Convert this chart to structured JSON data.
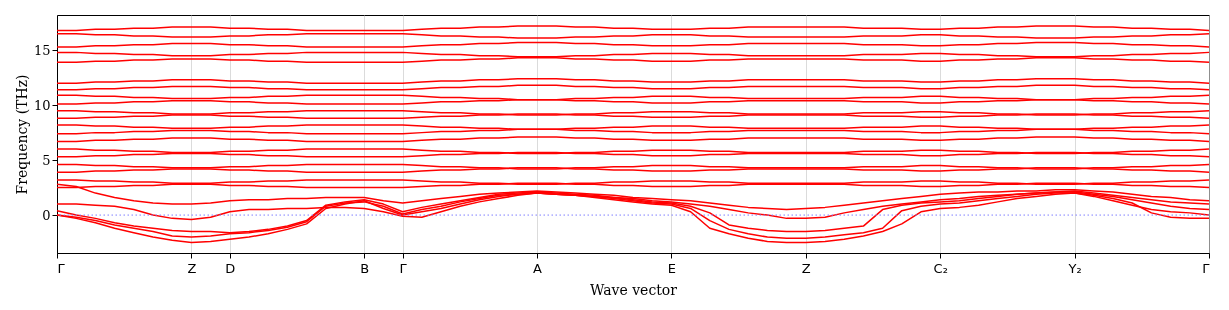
{
  "chart_data": {
    "type": "line",
    "xlabel": "Wave vector",
    "ylabel": "Frequency (THz)",
    "grid": "x",
    "line_style": "solid",
    "marker": "none",
    "categories": [
      "Γ",
      null,
      null,
      null,
      null,
      null,
      null,
      "Z",
      null,
      "D",
      null,
      null,
      null,
      null,
      null,
      null,
      "B",
      null,
      "Γ",
      null,
      null,
      null,
      null,
      null,
      null,
      "A",
      null,
      null,
      null,
      null,
      null,
      null,
      "E",
      null,
      null,
      null,
      null,
      null,
      null,
      "Z",
      null,
      null,
      null,
      null,
      null,
      null,
      "C₂",
      null,
      null,
      null,
      null,
      null,
      null,
      "Y₂",
      null,
      null,
      null,
      null,
      null,
      null,
      "Γ"
    ],
    "ylim": [
      -3.45,
      18.2
    ],
    "yticks": [
      0,
      5,
      10,
      15
    ],
    "ref_lines": [
      {
        "axis": "y",
        "value": 0,
        "color": "#7f7fff",
        "line_style": "dotted"
      }
    ],
    "series": [
      {
        "color": "#ff0000",
        "values": [
          0,
          -0.3,
          -0.7,
          -1.2,
          -1.6,
          -2.0,
          -2.3,
          -2.5,
          -2.4,
          -2.2,
          -2.0,
          -1.7,
          -1.3,
          -0.8,
          0.6,
          1.0,
          1.3,
          0.6,
          0,
          0.3,
          0.6,
          1.0,
          1.4,
          1.7,
          1.9,
          2.0,
          1.9,
          1.8,
          1.6,
          1.4,
          1.2,
          1.0,
          0.9,
          0.3,
          -1.2,
          -1.7,
          -2.1,
          -2.4,
          -2.5,
          -2.5,
          -2.4,
          -2.2,
          -1.9,
          -1.5,
          -0.8,
          0.3,
          0.6,
          0.7,
          0.9,
          1.2,
          1.5,
          1.7,
          1.9,
          2.0,
          1.7,
          1.3,
          0.9,
          0.5,
          0.3,
          0.2,
          0
        ]
      },
      {
        "color": "#ff0000",
        "values": [
          0,
          -0.2,
          -0.5,
          -0.9,
          -1.2,
          -1.5,
          -1.9,
          -2.0,
          -1.9,
          -1.7,
          -1.6,
          -1.4,
          -1.1,
          -0.6,
          0.8,
          1.1,
          1.2,
          0.8,
          0.1,
          0.5,
          0.8,
          1.2,
          1.5,
          1.8,
          1.9,
          2.0,
          1.9,
          1.8,
          1.7,
          1.5,
          1.3,
          1.1,
          1.0,
          0.6,
          -0.5,
          -1.3,
          -1.7,
          -2.0,
          -2.1,
          -2.1,
          -2.0,
          -1.8,
          -1.6,
          -1.2,
          0.4,
          0.8,
          1.0,
          1.1,
          1.3,
          1.5,
          1.7,
          1.9,
          2.0,
          2.0,
          1.8,
          1.5,
          1.1,
          0.2,
          -0.2,
          -0.3,
          -0.3
        ]
      },
      {
        "color": "#ff0000",
        "values": [
          0.4,
          0.0,
          -0.3,
          -0.7,
          -1.0,
          -1.2,
          -1.4,
          -1.5,
          -1.5,
          -1.6,
          -1.5,
          -1.3,
          -1.0,
          -0.5,
          0.9,
          1.2,
          1.4,
          1.0,
          0.3,
          0.7,
          1.0,
          1.3,
          1.6,
          1.9,
          2.0,
          2.1,
          2.0,
          1.9,
          1.8,
          1.6,
          1.4,
          1.2,
          1.1,
          0.8,
          0.2,
          -0.9,
          -1.2,
          -1.4,
          -1.5,
          -1.5,
          -1.4,
          -1.2,
          -1.0,
          0.5,
          0.9,
          1.1,
          1.2,
          1.3,
          1.5,
          1.7,
          1.9,
          2.0,
          2.1,
          2.1,
          1.9,
          1.7,
          1.4,
          1.1,
          0.8,
          0.6,
          0.5
        ]
      },
      {
        "color": "#ff0000",
        "values": [
          1.0,
          1.0,
          0.9,
          0.8,
          0.5,
          0.0,
          -0.3,
          -0.4,
          -0.2,
          0.3,
          0.5,
          0.5,
          0.6,
          0.6,
          0.7,
          0.7,
          0.6,
          0.3,
          -0.1,
          -0.2,
          0.3,
          0.8,
          1.2,
          1.5,
          1.8,
          2.0,
          1.9,
          1.8,
          1.7,
          1.6,
          1.5,
          1.3,
          1.2,
          1.0,
          0.8,
          0.5,
          0.2,
          0.0,
          -0.3,
          -0.3,
          -0.2,
          0.2,
          0.5,
          0.8,
          1.0,
          1.2,
          1.4,
          1.5,
          1.7,
          1.8,
          1.9,
          2.0,
          2.1,
          2.2,
          2.0,
          1.8,
          1.6,
          1.4,
          1.2,
          1.1,
          1.0
        ]
      },
      {
        "color": "#ff0000",
        "values": [
          2.8,
          2.6,
          2.0,
          1.6,
          1.3,
          1.1,
          1.0,
          1.0,
          1.1,
          1.3,
          1.4,
          1.4,
          1.5,
          1.5,
          1.6,
          1.6,
          1.6,
          1.3,
          1.1,
          1.3,
          1.5,
          1.7,
          1.9,
          2.0,
          2.1,
          2.2,
          2.1,
          2.0,
          1.9,
          1.8,
          1.6,
          1.5,
          1.4,
          1.3,
          1.1,
          0.9,
          0.7,
          0.6,
          0.5,
          0.6,
          0.7,
          0.9,
          1.1,
          1.3,
          1.5,
          1.7,
          1.9,
          2.0,
          2.1,
          2.1,
          2.2,
          2.2,
          2.3,
          2.3,
          2.2,
          2.1,
          1.9,
          1.7,
          1.6,
          1.4,
          1.3
        ]
      },
      {
        "color": "#ff0000",
        "values": [
          2.5,
          2.5,
          2.6,
          2.6,
          2.7,
          2.7,
          2.8,
          2.8,
          2.8,
          2.7,
          2.7,
          2.6,
          2.6,
          2.5,
          2.5,
          2.5,
          2.5,
          2.5,
          2.5,
          2.6,
          2.7,
          2.7,
          2.8,
          2.8,
          2.9,
          2.9,
          2.9,
          2.8,
          2.8,
          2.7,
          2.7,
          2.6,
          2.6,
          2.6,
          2.7,
          2.7,
          2.8,
          2.8,
          2.8,
          2.8,
          2.8,
          2.8,
          2.7,
          2.7,
          2.7,
          2.6,
          2.6,
          2.7,
          2.7,
          2.8,
          2.8,
          2.9,
          2.9,
          2.9,
          2.8,
          2.8,
          2.7,
          2.7,
          2.6,
          2.6,
          2.5
        ]
      },
      {
        "color": "#ff0000",
        "values": [
          3.2,
          3.2,
          3.1,
          3.1,
          3,
          3,
          2.9,
          2.9,
          2.9,
          3,
          3,
          3.1,
          3.1,
          3.2,
          3.2,
          3.2,
          3.2,
          3.2,
          3.2,
          3.1,
          3,
          3,
          2.9,
          2.9,
          2.8,
          2.8,
          2.8,
          2.9,
          2.9,
          3,
          3,
          3.1,
          3.1,
          3.1,
          3,
          3,
          2.9,
          2.9,
          2.9,
          2.9,
          2.9,
          2.9,
          3,
          3,
          3,
          3.1,
          3.1,
          3,
          3,
          2.9,
          2.9,
          2.8,
          2.8,
          2.8,
          2.9,
          2.9,
          3,
          3,
          3.1,
          3.1,
          3.2
        ]
      },
      {
        "color": "#ff0000",
        "values": [
          3.9,
          3.9,
          4,
          4,
          4.1,
          4.1,
          4.2,
          4.2,
          4.2,
          4.1,
          4.1,
          4,
          4,
          3.9,
          3.9,
          3.9,
          3.9,
          3.9,
          3.9,
          4,
          4.1,
          4.1,
          4.2,
          4.2,
          4.3,
          4.3,
          4.3,
          4.2,
          4.2,
          4.1,
          4.1,
          4,
          4,
          4,
          4.1,
          4.1,
          4.2,
          4.2,
          4.2,
          4.2,
          4.2,
          4.2,
          4.1,
          4.1,
          4.1,
          4,
          4,
          4.1,
          4.1,
          4.2,
          4.2,
          4.3,
          4.3,
          4.3,
          4.2,
          4.2,
          4.1,
          4.1,
          4,
          4,
          3.9
        ]
      },
      {
        "color": "#ff0000",
        "values": [
          4.6,
          4.6,
          4.5,
          4.5,
          4.4,
          4.4,
          4.3,
          4.3,
          4.3,
          4.4,
          4.4,
          4.5,
          4.5,
          4.6,
          4.6,
          4.6,
          4.6,
          4.6,
          4.6,
          4.5,
          4.4,
          4.4,
          4.3,
          4.3,
          4.2,
          4.2,
          4.2,
          4.3,
          4.3,
          4.4,
          4.4,
          4.5,
          4.5,
          4.5,
          4.4,
          4.4,
          4.3,
          4.3,
          4.3,
          4.3,
          4.3,
          4.3,
          4.4,
          4.4,
          4.4,
          4.5,
          4.5,
          4.4,
          4.4,
          4.3,
          4.3,
          4.2,
          4.2,
          4.2,
          4.3,
          4.3,
          4.4,
          4.4,
          4.5,
          4.5,
          4.6
        ]
      },
      {
        "color": "#ff0000",
        "values": [
          5.3,
          5.3,
          5.4,
          5.4,
          5.5,
          5.5,
          5.6,
          5.6,
          5.6,
          5.5,
          5.5,
          5.4,
          5.4,
          5.3,
          5.3,
          5.3,
          5.3,
          5.3,
          5.3,
          5.4,
          5.5,
          5.5,
          5.6,
          5.6,
          5.7,
          5.7,
          5.7,
          5.6,
          5.6,
          5.5,
          5.5,
          5.4,
          5.4,
          5.4,
          5.5,
          5.5,
          5.6,
          5.6,
          5.6,
          5.6,
          5.6,
          5.6,
          5.5,
          5.5,
          5.5,
          5.4,
          5.4,
          5.5,
          5.5,
          5.6,
          5.6,
          5.7,
          5.7,
          5.7,
          5.6,
          5.6,
          5.5,
          5.5,
          5.4,
          5.4,
          5.3
        ]
      },
      {
        "color": "#ff0000",
        "values": [
          6,
          6,
          5.9,
          5.9,
          5.8,
          5.8,
          5.7,
          5.7,
          5.7,
          5.8,
          5.8,
          5.9,
          5.9,
          6,
          6,
          6,
          6,
          6,
          6,
          5.9,
          5.8,
          5.8,
          5.7,
          5.7,
          5.6,
          5.6,
          5.6,
          5.7,
          5.7,
          5.8,
          5.8,
          5.9,
          5.9,
          5.9,
          5.8,
          5.8,
          5.7,
          5.7,
          5.7,
          5.7,
          5.7,
          5.7,
          5.8,
          5.8,
          5.8,
          5.9,
          5.9,
          5.8,
          5.8,
          5.7,
          5.7,
          5.6,
          5.6,
          5.6,
          5.7,
          5.7,
          5.8,
          5.8,
          5.9,
          5.9,
          6
        ]
      },
      {
        "color": "#ff0000",
        "values": [
          6.7,
          6.7,
          6.8,
          6.8,
          6.9,
          6.9,
          7,
          7,
          7,
          6.9,
          6.9,
          6.8,
          6.8,
          6.7,
          6.7,
          6.7,
          6.7,
          6.7,
          6.7,
          6.8,
          6.9,
          6.9,
          7,
          7,
          7.1,
          7.1,
          7.1,
          7,
          7,
          6.9,
          6.9,
          6.8,
          6.8,
          6.8,
          6.9,
          6.9,
          7,
          7,
          7,
          7,
          7,
          7,
          6.9,
          6.9,
          6.9,
          6.8,
          6.8,
          6.9,
          6.9,
          7,
          7,
          7.1,
          7.1,
          7.1,
          7,
          7,
          6.9,
          6.9,
          6.8,
          6.8,
          6.7
        ]
      },
      {
        "color": "#ff0000",
        "values": [
          7.4,
          7.4,
          7.5,
          7.5,
          7.6,
          7.6,
          7.7,
          7.7,
          7.7,
          7.6,
          7.6,
          7.5,
          7.5,
          7.4,
          7.4,
          7.4,
          7.4,
          7.4,
          7.4,
          7.5,
          7.6,
          7.6,
          7.7,
          7.7,
          7.8,
          7.8,
          7.8,
          7.7,
          7.7,
          7.6,
          7.6,
          7.5,
          7.5,
          7.5,
          7.6,
          7.6,
          7.7,
          7.7,
          7.7,
          7.7,
          7.7,
          7.7,
          7.6,
          7.6,
          7.6,
          7.5,
          7.5,
          7.6,
          7.6,
          7.7,
          7.7,
          7.8,
          7.8,
          7.8,
          7.7,
          7.7,
          7.6,
          7.6,
          7.5,
          7.5,
          7.4
        ]
      },
      {
        "color": "#ff0000",
        "values": [
          8.2,
          8.2,
          8.1,
          8.1,
          8,
          8,
          7.9,
          7.9,
          7.9,
          8,
          8,
          8.1,
          8.1,
          8.2,
          8.2,
          8.2,
          8.2,
          8.2,
          8.2,
          8.1,
          8,
          8,
          7.9,
          7.9,
          7.8,
          7.8,
          7.8,
          7.9,
          7.9,
          8,
          8,
          8.1,
          8.1,
          8.1,
          8,
          8,
          7.9,
          7.9,
          7.9,
          7.9,
          7.9,
          7.9,
          8,
          8,
          8,
          8.1,
          8.1,
          8,
          8,
          7.9,
          7.9,
          7.8,
          7.8,
          7.8,
          7.9,
          7.9,
          8,
          8,
          8.1,
          8.1,
          8.2
        ]
      },
      {
        "color": "#ff0000",
        "values": [
          8.8,
          8.8,
          8.9,
          8.9,
          9,
          9,
          9.1,
          9.1,
          9.1,
          9,
          9,
          8.9,
          8.9,
          8.8,
          8.8,
          8.8,
          8.8,
          8.8,
          8.8,
          8.9,
          9,
          9,
          9.1,
          9.1,
          9.2,
          9.2,
          9.2,
          9.1,
          9.1,
          9,
          9,
          8.9,
          8.9,
          8.9,
          9,
          9,
          9.1,
          9.1,
          9.1,
          9.1,
          9.1,
          9.1,
          9,
          9,
          9,
          8.9,
          8.9,
          9,
          9,
          9.1,
          9.1,
          9.2,
          9.2,
          9.2,
          9.1,
          9.1,
          9,
          9,
          8.9,
          8.9,
          8.8
        ]
      },
      {
        "color": "#ff0000",
        "values": [
          9.5,
          9.5,
          9.4,
          9.4,
          9.3,
          9.3,
          9.2,
          9.2,
          9.2,
          9.3,
          9.3,
          9.4,
          9.4,
          9.5,
          9.5,
          9.5,
          9.5,
          9.5,
          9.5,
          9.4,
          9.3,
          9.3,
          9.2,
          9.2,
          9.1,
          9.1,
          9.1,
          9.2,
          9.2,
          9.3,
          9.3,
          9.4,
          9.4,
          9.4,
          9.3,
          9.3,
          9.2,
          9.2,
          9.2,
          9.2,
          9.2,
          9.2,
          9.3,
          9.3,
          9.3,
          9.4,
          9.4,
          9.3,
          9.3,
          9.2,
          9.2,
          9.1,
          9.1,
          9.1,
          9.2,
          9.2,
          9.3,
          9.3,
          9.4,
          9.4,
          9.5
        ]
      },
      {
        "color": "#ff0000",
        "values": [
          10.1,
          10.1,
          10.2,
          10.2,
          10.3,
          10.3,
          10.4,
          10.4,
          10.4,
          10.3,
          10.3,
          10.2,
          10.2,
          10.1,
          10.1,
          10.1,
          10.1,
          10.1,
          10.1,
          10.2,
          10.3,
          10.3,
          10.4,
          10.4,
          10.5,
          10.5,
          10.5,
          10.4,
          10.4,
          10.3,
          10.3,
          10.2,
          10.2,
          10.2,
          10.3,
          10.3,
          10.4,
          10.4,
          10.4,
          10.4,
          10.4,
          10.4,
          10.3,
          10.3,
          10.3,
          10.2,
          10.2,
          10.3,
          10.3,
          10.4,
          10.4,
          10.5,
          10.5,
          10.5,
          10.4,
          10.4,
          10.3,
          10.3,
          10.2,
          10.2,
          10.1
        ]
      },
      {
        "color": "#ff0000",
        "values": [
          10.9,
          10.9,
          10.8,
          10.8,
          10.7,
          10.7,
          10.6,
          10.6,
          10.6,
          10.7,
          10.7,
          10.8,
          10.8,
          10.9,
          10.9,
          10.9,
          10.9,
          10.9,
          10.9,
          10.8,
          10.7,
          10.7,
          10.6,
          10.6,
          10.5,
          10.5,
          10.5,
          10.6,
          10.6,
          10.7,
          10.7,
          10.8,
          10.8,
          10.8,
          10.7,
          10.7,
          10.6,
          10.6,
          10.6,
          10.6,
          10.6,
          10.6,
          10.7,
          10.7,
          10.7,
          10.8,
          10.8,
          10.7,
          10.7,
          10.6,
          10.6,
          10.5,
          10.5,
          10.5,
          10.6,
          10.6,
          10.7,
          10.7,
          10.8,
          10.8,
          10.9
        ]
      },
      {
        "color": "#ff0000",
        "values": [
          11.4,
          11.4,
          11.5,
          11.5,
          11.6,
          11.6,
          11.7,
          11.7,
          11.7,
          11.6,
          11.6,
          11.5,
          11.5,
          11.4,
          11.4,
          11.4,
          11.4,
          11.4,
          11.4,
          11.5,
          11.6,
          11.6,
          11.7,
          11.7,
          11.8,
          11.8,
          11.8,
          11.7,
          11.7,
          11.6,
          11.6,
          11.5,
          11.5,
          11.5,
          11.6,
          11.6,
          11.7,
          11.7,
          11.7,
          11.7,
          11.7,
          11.7,
          11.6,
          11.6,
          11.6,
          11.5,
          11.5,
          11.6,
          11.6,
          11.7,
          11.7,
          11.8,
          11.8,
          11.8,
          11.7,
          11.7,
          11.6,
          11.6,
          11.5,
          11.5,
          11.4
        ]
      },
      {
        "color": "#ff0000",
        "values": [
          12,
          12,
          12.1,
          12.1,
          12.2,
          12.2,
          12.3,
          12.3,
          12.3,
          12.2,
          12.2,
          12.1,
          12.1,
          12,
          12,
          12,
          12,
          12,
          12,
          12.1,
          12.2,
          12.2,
          12.3,
          12.3,
          12.4,
          12.4,
          12.4,
          12.3,
          12.3,
          12.2,
          12.2,
          12.1,
          12.1,
          12.1,
          12.2,
          12.2,
          12.3,
          12.3,
          12.3,
          12.3,
          12.3,
          12.3,
          12.2,
          12.2,
          12.2,
          12.1,
          12.1,
          12.2,
          12.2,
          12.3,
          12.3,
          12.4,
          12.4,
          12.4,
          12.3,
          12.3,
          12.2,
          12.2,
          12.1,
          12.1,
          12
        ]
      },
      {
        "color": "#ff0000",
        "values": [
          13.9,
          13.9,
          14,
          14,
          14.1,
          14.1,
          14.2,
          14.2,
          14.2,
          14.1,
          14.1,
          14,
          14,
          13.9,
          13.9,
          13.9,
          13.9,
          13.9,
          13.9,
          14,
          14.1,
          14.1,
          14.2,
          14.2,
          14.3,
          14.3,
          14.3,
          14.2,
          14.2,
          14.1,
          14.1,
          14,
          14,
          14,
          14.1,
          14.1,
          14.2,
          14.2,
          14.2,
          14.2,
          14.2,
          14.2,
          14.1,
          14.1,
          14.1,
          14,
          14,
          14.1,
          14.1,
          14.2,
          14.2,
          14.3,
          14.3,
          14.3,
          14.2,
          14.2,
          14.1,
          14.1,
          14,
          14,
          13.9
        ]
      },
      {
        "color": "#ff0000",
        "values": [
          14.8,
          14.8,
          14.7,
          14.7,
          14.6,
          14.6,
          14.5,
          14.5,
          14.5,
          14.6,
          14.6,
          14.7,
          14.7,
          14.8,
          14.8,
          14.8,
          14.8,
          14.8,
          14.8,
          14.7,
          14.6,
          14.6,
          14.5,
          14.5,
          14.4,
          14.4,
          14.4,
          14.5,
          14.5,
          14.6,
          14.6,
          14.7,
          14.7,
          14.7,
          14.6,
          14.6,
          14.5,
          14.5,
          14.5,
          14.5,
          14.5,
          14.5,
          14.6,
          14.6,
          14.6,
          14.7,
          14.7,
          14.6,
          14.6,
          14.5,
          14.5,
          14.4,
          14.4,
          14.4,
          14.5,
          14.5,
          14.6,
          14.6,
          14.7,
          14.7,
          14.8
        ]
      },
      {
        "color": "#ff0000",
        "values": [
          15.3,
          15.3,
          15.4,
          15.4,
          15.5,
          15.5,
          15.6,
          15.6,
          15.6,
          15.5,
          15.5,
          15.4,
          15.4,
          15.3,
          15.3,
          15.3,
          15.3,
          15.3,
          15.3,
          15.4,
          15.5,
          15.5,
          15.6,
          15.6,
          15.7,
          15.7,
          15.7,
          15.6,
          15.6,
          15.5,
          15.5,
          15.4,
          15.4,
          15.4,
          15.5,
          15.5,
          15.6,
          15.6,
          15.6,
          15.6,
          15.6,
          15.6,
          15.5,
          15.5,
          15.5,
          15.4,
          15.4,
          15.5,
          15.5,
          15.6,
          15.6,
          15.7,
          15.7,
          15.7,
          15.6,
          15.6,
          15.5,
          15.5,
          15.4,
          15.4,
          15.3
        ]
      },
      {
        "color": "#ff0000",
        "values": [
          16.5,
          16.5,
          16.4,
          16.4,
          16.3,
          16.3,
          16.2,
          16.2,
          16.2,
          16.3,
          16.3,
          16.4,
          16.4,
          16.5,
          16.5,
          16.5,
          16.5,
          16.5,
          16.5,
          16.4,
          16.3,
          16.3,
          16.2,
          16.2,
          16.1,
          16.1,
          16.1,
          16.2,
          16.2,
          16.3,
          16.3,
          16.4,
          16.4,
          16.4,
          16.3,
          16.3,
          16.2,
          16.2,
          16.2,
          16.2,
          16.2,
          16.2,
          16.3,
          16.3,
          16.3,
          16.4,
          16.4,
          16.3,
          16.3,
          16.2,
          16.2,
          16.1,
          16.1,
          16.1,
          16.2,
          16.2,
          16.3,
          16.3,
          16.4,
          16.4,
          16.5
        ]
      },
      {
        "color": "#ff0000",
        "values": [
          16.8,
          16.8,
          16.9,
          16.9,
          17,
          17,
          17.1,
          17.1,
          17.1,
          17,
          17,
          16.9,
          16.9,
          16.8,
          16.8,
          16.8,
          16.8,
          16.8,
          16.8,
          16.9,
          17,
          17,
          17.1,
          17.1,
          17.2,
          17.2,
          17.2,
          17.1,
          17.1,
          17,
          17,
          16.9,
          16.9,
          16.9,
          17,
          17,
          17.1,
          17.1,
          17.1,
          17.1,
          17.1,
          17.1,
          17,
          17,
          17,
          16.9,
          16.9,
          17,
          17,
          17.1,
          17.1,
          17.2,
          17.2,
          17.2,
          17.1,
          17.1,
          17,
          17,
          16.9,
          16.9,
          16.8
        ]
      }
    ]
  }
}
